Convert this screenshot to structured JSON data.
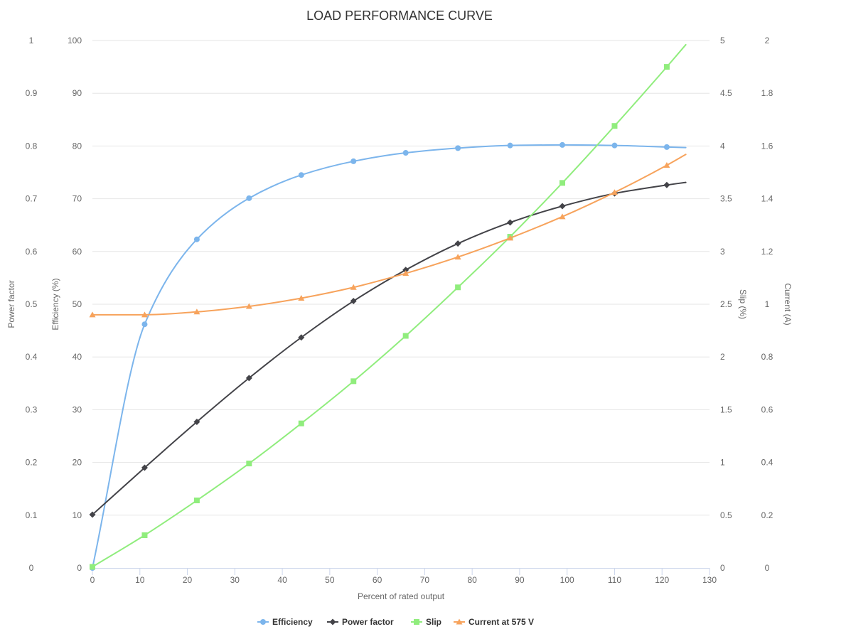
{
  "chart_data": {
    "type": "line",
    "title": "LOAD PERFORMANCE CURVE",
    "xlabel": "Percent of rated output",
    "xlim": [
      0,
      130
    ],
    "xticks": [
      "0",
      "10",
      "20",
      "30",
      "40",
      "50",
      "60",
      "70",
      "80",
      "90",
      "100",
      "110",
      "120",
      "130"
    ],
    "grid": true,
    "legend_position": "bottom-center",
    "axes": {
      "power_factor": {
        "label": "Power factor",
        "range": [
          0,
          1
        ],
        "ticks": [
          "0",
          "0.1",
          "0.2",
          "0.3",
          "0.4",
          "0.5",
          "0.6",
          "0.7",
          "0.8",
          "0.9",
          "1"
        ]
      },
      "efficiency": {
        "label": "Efficiency (%)",
        "range": [
          0,
          100
        ],
        "ticks": [
          "0",
          "10",
          "20",
          "30",
          "40",
          "50",
          "60",
          "70",
          "80",
          "90",
          "100"
        ]
      },
      "slip": {
        "label": "Slip (%)",
        "range": [
          0,
          5
        ],
        "ticks": [
          "0",
          "0.5",
          "1",
          "1.5",
          "2",
          "2.5",
          "3",
          "3.5",
          "4",
          "4.5",
          "5"
        ]
      },
      "current": {
        "label": "Current (A)",
        "range": [
          0,
          2
        ],
        "ticks": [
          "0",
          "0.2",
          "0.4",
          "0.6",
          "0.8",
          "1",
          "1.2",
          "1.4",
          "1.6",
          "1.8",
          "2"
        ]
      }
    },
    "series": [
      {
        "name": "Efficiency",
        "axis": "efficiency",
        "color": "#7cb5ec",
        "marker": "circle",
        "x": [
          0,
          11,
          22,
          33,
          44,
          55,
          66,
          77,
          88,
          99,
          110,
          121
        ],
        "values": [
          0,
          46.2,
          62.3,
          70.1,
          74.5,
          77.1,
          78.7,
          79.6,
          80.1,
          80.2,
          80.1,
          79.8
        ],
        "end_x": 125,
        "end_value": 79.7
      },
      {
        "name": "Power factor",
        "axis": "power_factor",
        "color": "#434348",
        "marker": "diamond",
        "x": [
          0,
          11,
          22,
          33,
          44,
          55,
          66,
          77,
          88,
          99,
          110,
          121
        ],
        "values": [
          0.101,
          0.19,
          0.277,
          0.36,
          0.437,
          0.506,
          0.565,
          0.615,
          0.655,
          0.686,
          0.71,
          0.726
        ],
        "end_x": 125,
        "end_value": 0.731
      },
      {
        "name": "Slip",
        "axis": "slip",
        "color": "#90ed7d",
        "marker": "square",
        "x": [
          0,
          11,
          22,
          33,
          44,
          55,
          66,
          77,
          88,
          99,
          110,
          121
        ],
        "values": [
          0.01,
          0.31,
          0.64,
          0.99,
          1.37,
          1.77,
          2.2,
          2.66,
          3.14,
          3.65,
          4.19,
          4.75
        ],
        "end_x": 125,
        "end_value": 4.96
      },
      {
        "name": "Current at 575 V",
        "axis": "current",
        "color": "#f7a35c",
        "marker": "triangle",
        "x": [
          0,
          11,
          22,
          33,
          44,
          55,
          66,
          77,
          88,
          99,
          110,
          121
        ],
        "values": [
          0.96,
          0.96,
          0.971,
          0.992,
          1.023,
          1.064,
          1.117,
          1.179,
          1.251,
          1.332,
          1.424,
          1.527
        ],
        "end_x": 125,
        "end_value": 1.568
      }
    ]
  }
}
